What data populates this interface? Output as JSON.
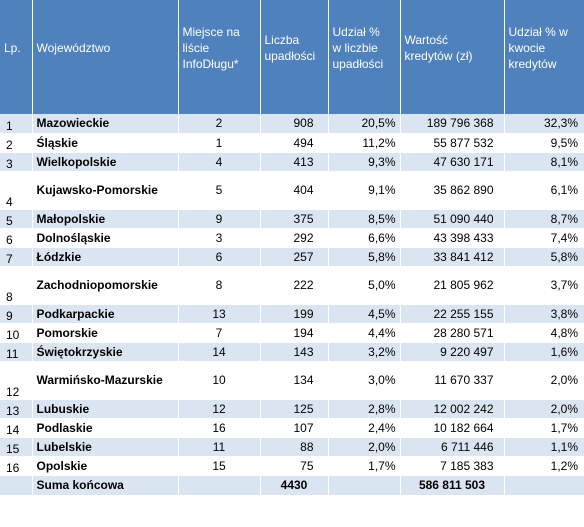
{
  "headers": {
    "lp": "Lp.",
    "wojewodztwo": "Województwo",
    "miejsce": [
      "Miejsce na",
      "liście",
      "InfoDługu*"
    ],
    "liczba": [
      "Liczba",
      "upadłości"
    ],
    "udzial_liczba": [
      "Udział %",
      "w liczbie",
      "upadłości"
    ],
    "wartosc": [
      "Wartość",
      "kredytów (zł)"
    ],
    "udzial_kwota": [
      "Udział % w",
      "kwocie",
      "kredytów"
    ]
  },
  "rows": [
    {
      "lp": "1",
      "woj": "Mazowieckie",
      "miejsce": "2",
      "liczba": "908",
      "udzial": "20,5%",
      "wartosc": "189 796 368",
      "udzialk": "32,3%"
    },
    {
      "lp": "2",
      "woj": "Śląskie",
      "miejsce": "1",
      "liczba": "494",
      "udzial": "11,2%",
      "wartosc": "55 877 532",
      "udzialk": "9,5%"
    },
    {
      "lp": "3",
      "woj": "Wielkopolskie",
      "miejsce": "4",
      "liczba": "413",
      "udzial": "9,3%",
      "wartosc": "47 630 171",
      "udzialk": "8,1%"
    },
    {
      "lp": "4",
      "woj": "Kujawsko-Pomorskie",
      "miejsce": "5",
      "liczba": "404",
      "udzial": "9,1%",
      "wartosc": "35 862 890",
      "udzialk": "6,1%"
    },
    {
      "lp": "5",
      "woj": "Małopolskie",
      "miejsce": "9",
      "liczba": "375",
      "udzial": "8,5%",
      "wartosc": "51 090 440",
      "udzialk": "8,7%"
    },
    {
      "lp": "6",
      "woj": "Dolnośląskie",
      "miejsce": "3",
      "liczba": "292",
      "udzial": "6,6%",
      "wartosc": "43 398 433",
      "udzialk": "7,4%"
    },
    {
      "lp": "7",
      "woj": "Łódzkie",
      "miejsce": "6",
      "liczba": "257",
      "udzial": "5,8%",
      "wartosc": "33 841 412",
      "udzialk": "5,8%"
    },
    {
      "lp": "8",
      "woj": "Zachodniopomorskie",
      "miejsce": "8",
      "liczba": "222",
      "udzial": "5,0%",
      "wartosc": "21 805 962",
      "udzialk": "3,7%"
    },
    {
      "lp": "9",
      "woj": "Podkarpackie",
      "miejsce": "13",
      "liczba": "199",
      "udzial": "4,5%",
      "wartosc": "22 255 155",
      "udzialk": "3,8%"
    },
    {
      "lp": "10",
      "woj": "Pomorskie",
      "miejsce": "7",
      "liczba": "194",
      "udzial": "4,4%",
      "wartosc": "28 280 571",
      "udzialk": "4,8%"
    },
    {
      "lp": "11",
      "woj": "Świętokrzyskie",
      "miejsce": "14",
      "liczba": "143",
      "udzial": "3,2%",
      "wartosc": "9 220 497",
      "udzialk": "1,6%"
    },
    {
      "lp": "12",
      "woj": "Warmińsko-Mazurskie",
      "miejsce": "10",
      "liczba": "134",
      "udzial": "3,0%",
      "wartosc": "11 670 337",
      "udzialk": "2,0%"
    },
    {
      "lp": "13",
      "woj": "Lubuskie",
      "miejsce": "12",
      "liczba": "125",
      "udzial": "2,8%",
      "wartosc": "12 002 242",
      "udzialk": "2,0%"
    },
    {
      "lp": "14",
      "woj": "Podlaskie",
      "miejsce": "16",
      "liczba": "107",
      "udzial": "2,4%",
      "wartosc": "10 182 664",
      "udzialk": "1,7%"
    },
    {
      "lp": "15",
      "woj": "Lubelskie",
      "miejsce": "11",
      "liczba": "88",
      "udzial": "2,0%",
      "wartosc": "6 711 446",
      "udzialk": "1,1%"
    },
    {
      "lp": "16",
      "woj": "Opolskie",
      "miejsce": "15",
      "liczba": "75",
      "udzial": "1,7%",
      "wartosc": "7 185 383",
      "udzialk": "1,2%"
    }
  ],
  "total": {
    "label": "Suma końcowa",
    "liczba": "4430",
    "wartosc": "586 811 503"
  },
  "colors": {
    "header_bg": "#4f81bd",
    "header_text": "#ffffff",
    "band": "#dbe5f1"
  }
}
